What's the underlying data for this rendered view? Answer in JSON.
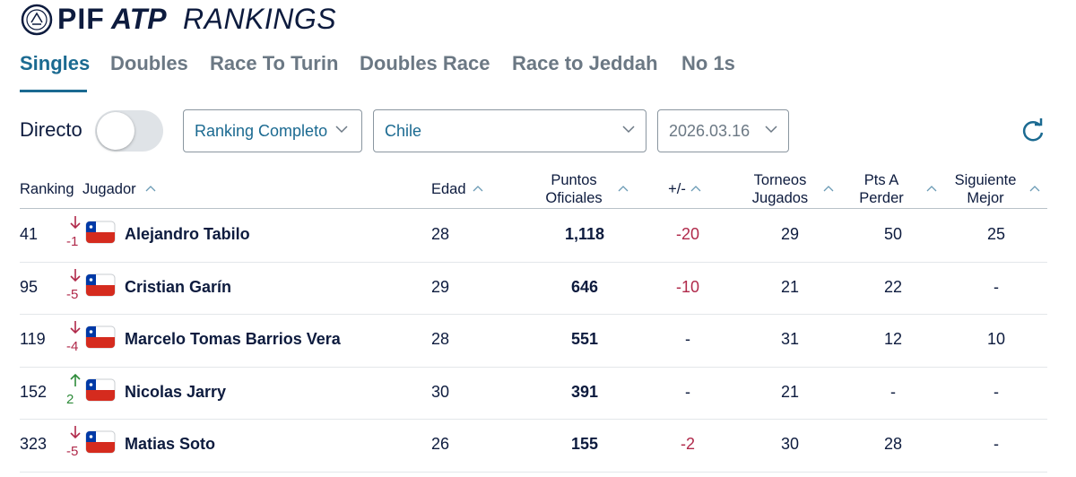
{
  "header": {
    "logo_left": "PIF",
    "logo_mid": "ATP",
    "logo_right": "RANKINGS"
  },
  "tabs": [
    "Singles",
    "Doubles",
    "Race To Turin",
    "Doubles Race",
    "Race to Jeddah",
    "No 1s"
  ],
  "filters": {
    "live_label": "Directo",
    "ranking": "Ranking Completo",
    "country": "Chile",
    "date": "2026.03.16"
  },
  "table": {
    "columns": [
      "Ranking",
      "Jugador",
      "Edad",
      "Puntos Oficiales",
      "+/-",
      "Torneos Jugados",
      "Pts A Perder",
      "Siguiente Mejor"
    ],
    "rows": [
      {
        "rank": "41",
        "move": "-1",
        "name": "Alejandro Tabilo",
        "age": "28",
        "points": "1,118",
        "change": "-20",
        "played": "29",
        "drop": "50",
        "next": "25"
      },
      {
        "rank": "95",
        "move": "-5",
        "name": "Cristian Garín",
        "age": "29",
        "points": "646",
        "change": "-10",
        "played": "21",
        "drop": "22",
        "next": "-"
      },
      {
        "rank": "119",
        "move": "-4",
        "name": "Marcelo Tomas Barrios Vera",
        "age": "28",
        "points": "551",
        "change": "-",
        "played": "31",
        "drop": "12",
        "next": "10"
      },
      {
        "rank": "152",
        "move": "2",
        "name": "Nicolas Jarry",
        "age": "30",
        "points": "391",
        "change": "-",
        "played": "21",
        "drop": "-",
        "next": "-"
      },
      {
        "rank": "323",
        "move": "-5",
        "name": "Matias Soto",
        "age": "26",
        "points": "155",
        "change": "-2",
        "played": "30",
        "drop": "28",
        "next": "-"
      }
    ]
  }
}
